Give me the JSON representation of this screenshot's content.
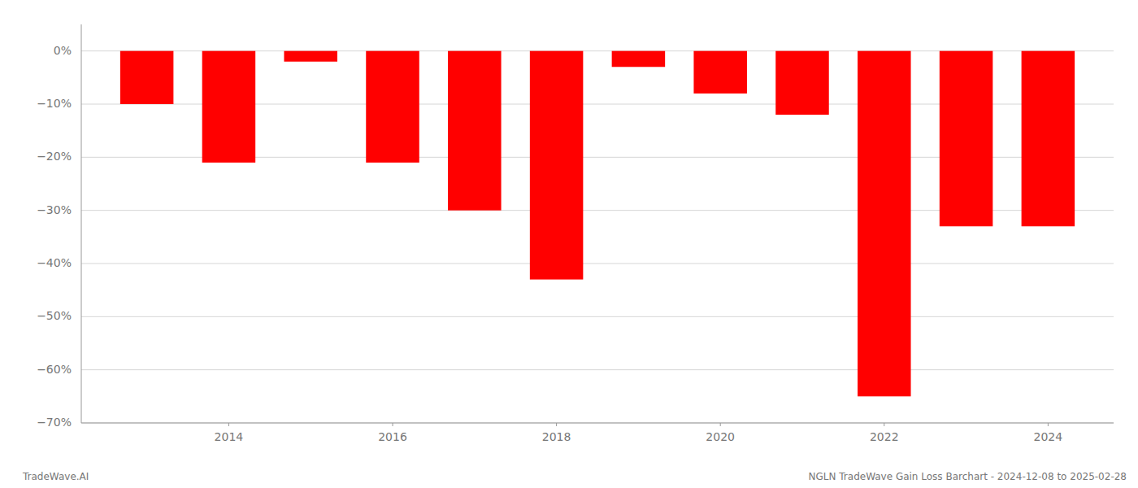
{
  "chart_data": {
    "type": "bar",
    "x": [
      2013,
      2014,
      2015,
      2016,
      2017,
      2018,
      2019,
      2020,
      2021,
      2022,
      2023,
      2024
    ],
    "values": [
      -10.0,
      -21.0,
      -2.0,
      -21.0,
      -30.0,
      -43.0,
      -3.0,
      -8.0,
      -12.0,
      -65.0,
      -33.0,
      -33.0
    ],
    "color": "#ff0000",
    "xlim": [
      2012.2,
      2024.8
    ],
    "xticks": [
      2014,
      2016,
      2018,
      2020,
      2022,
      2024
    ],
    "ylim": [
      -70,
      5
    ],
    "yticks": [
      {
        "value": 0,
        "label": "0%"
      },
      {
        "value": -10,
        "label": "−10%"
      },
      {
        "value": -20,
        "label": "−20%"
      },
      {
        "value": -30,
        "label": "−30%"
      },
      {
        "value": -40,
        "label": "−40%"
      },
      {
        "value": -50,
        "label": "−50%"
      },
      {
        "value": -60,
        "label": "−60%"
      },
      {
        "value": -70,
        "label": "−70%"
      }
    ],
    "grid": true,
    "annotations": [
      "TradeWave.AI",
      "NGLN TradeWave Gain Loss Barchart - 2024-12-08 to 2025-02-28"
    ]
  }
}
